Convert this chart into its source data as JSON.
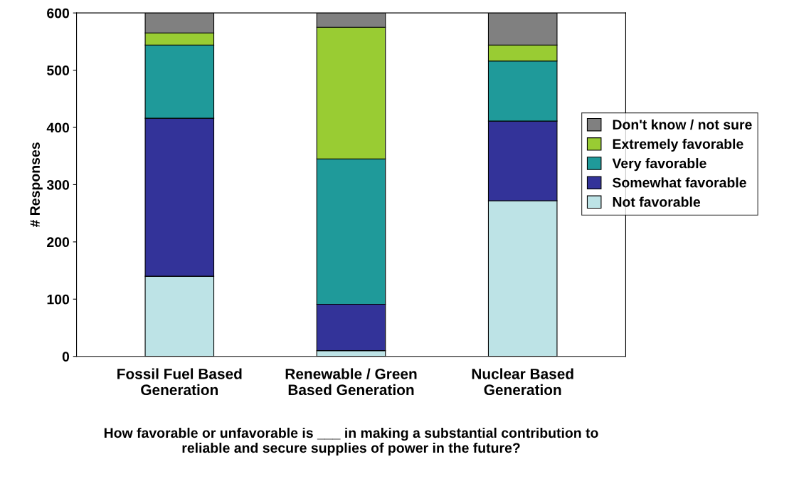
{
  "chart_data": {
    "type": "bar",
    "stacked": true,
    "categories": [
      "Fossil Fuel Based\nGeneration",
      "Renewable / Green\nBased Generation",
      "Nuclear Based\nGeneration"
    ],
    "series": [
      {
        "name": "Not favorable",
        "color": "#bde3e6",
        "values": [
          140,
          10,
          272
        ]
      },
      {
        "name": "Somewhat favorable",
        "color": "#333399",
        "values": [
          276,
          81,
          139
        ]
      },
      {
        "name": "Very favorable",
        "color": "#1f9a9a",
        "values": [
          128,
          254,
          105
        ]
      },
      {
        "name": "Extremely favorable",
        "color": "#99cc33",
        "values": [
          21,
          230,
          28
        ]
      },
      {
        "name": "Don't know / not sure",
        "color": "#808080",
        "values": [
          35,
          25,
          56
        ]
      }
    ],
    "ylabel": "# Responses",
    "xlabel": "How favorable or unfavorable is ___ in making a substantial contribution to\nreliable and secure supplies of power in the future?",
    "ylim": [
      0,
      600
    ],
    "yticks": [
      0,
      100,
      200,
      300,
      400,
      500,
      600
    ],
    "grid": false,
    "legend": "right"
  }
}
